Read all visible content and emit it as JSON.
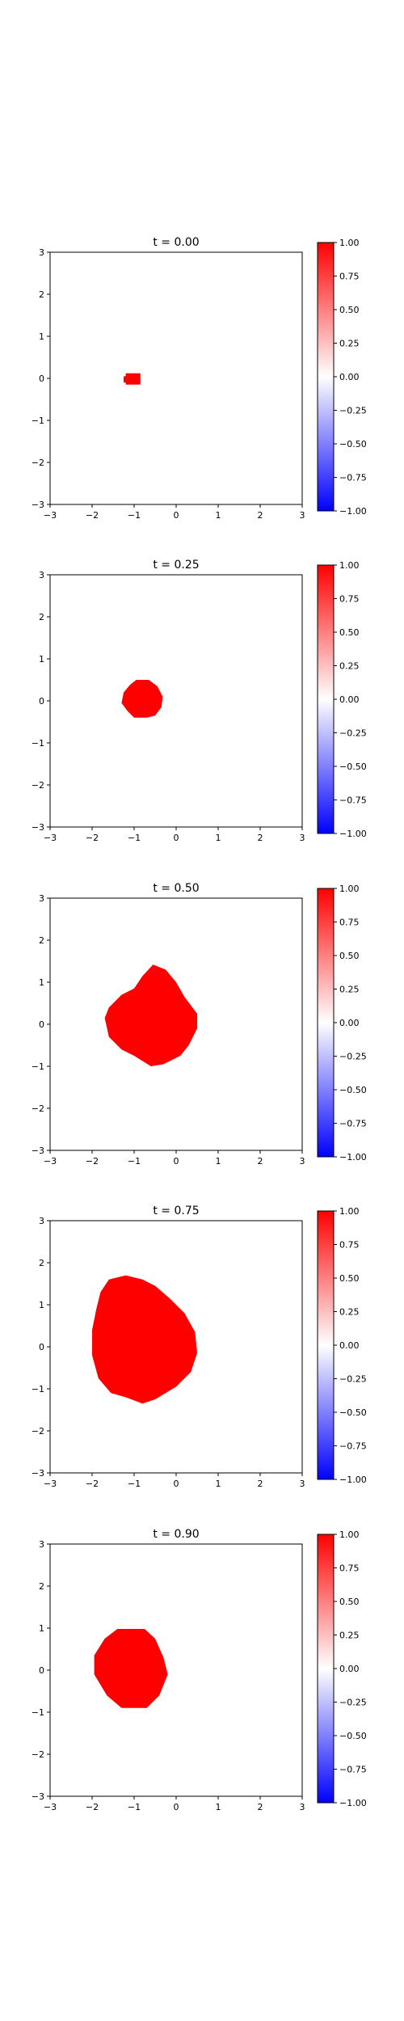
{
  "chart_data": [
    {
      "type": "heatmap",
      "title": "t = 0.00",
      "xlim": [
        -3,
        3
      ],
      "ylim": [
        -3,
        3
      ],
      "xticks": [
        "−3",
        "−2",
        "−1",
        "0",
        "1",
        "2",
        "3"
      ],
      "yticks": [
        "3",
        "2",
        "1",
        "0",
        "−1",
        "−2",
        "−3"
      ],
      "colorbar": {
        "min": -1.0,
        "max": 1.0,
        "ticks": [
          "1.00",
          "0.75",
          "0.50",
          "0.25",
          "0.00",
          "−0.25",
          "−0.50",
          "−0.75",
          "−1.00"
        ],
        "colormap": "bwr"
      },
      "region": {
        "value": 1.0,
        "color": "#ff0000",
        "outline": [
          [
            -1.2,
            0.12
          ],
          [
            -0.85,
            0.12
          ],
          [
            -0.85,
            -0.15
          ],
          [
            -1.2,
            -0.15
          ],
          [
            -1.2,
            -0.1
          ],
          [
            -1.25,
            -0.1
          ],
          [
            -1.25,
            0.05
          ],
          [
            -1.2,
            0.05
          ]
        ]
      }
    },
    {
      "type": "heatmap",
      "title": "t = 0.25",
      "xlim": [
        -3,
        3
      ],
      "ylim": [
        -3,
        3
      ],
      "xticks": [
        "−3",
        "−2",
        "−1",
        "0",
        "1",
        "2",
        "3"
      ],
      "yticks": [
        "3",
        "2",
        "1",
        "0",
        "−1",
        "−2",
        "−3"
      ],
      "colorbar": {
        "min": -1.0,
        "max": 1.0,
        "ticks": [
          "1.00",
          "0.75",
          "0.50",
          "0.25",
          "0.00",
          "−0.25",
          "−0.50",
          "−0.75",
          "−1.00"
        ],
        "colormap": "bwr"
      },
      "region": {
        "value": 1.0,
        "color": "#ff0000",
        "outline": [
          [
            -0.95,
            0.5
          ],
          [
            -0.65,
            0.5
          ],
          [
            -0.45,
            0.35
          ],
          [
            -0.32,
            0.1
          ],
          [
            -0.35,
            -0.15
          ],
          [
            -0.5,
            -0.35
          ],
          [
            -0.7,
            -0.4
          ],
          [
            -1.0,
            -0.4
          ],
          [
            -1.15,
            -0.25
          ],
          [
            -1.3,
            -0.05
          ],
          [
            -1.25,
            0.2
          ],
          [
            -1.1,
            0.38
          ]
        ]
      }
    },
    {
      "type": "heatmap",
      "title": "t = 0.50",
      "xlim": [
        -3,
        3
      ],
      "ylim": [
        -3,
        3
      ],
      "xticks": [
        "−3",
        "−2",
        "−1",
        "0",
        "1",
        "2",
        "3"
      ],
      "yticks": [
        "3",
        "2",
        "1",
        "0",
        "−1",
        "−2",
        "−3"
      ],
      "colorbar": {
        "min": -1.0,
        "max": 1.0,
        "ticks": [
          "1.00",
          "0.75",
          "0.50",
          "0.25",
          "0.00",
          "−0.25",
          "−0.50",
          "−0.75",
          "−1.00"
        ],
        "colormap": "bwr"
      },
      "region": {
        "value": 1.0,
        "color": "#ff0000",
        "outline": [
          [
            -0.55,
            1.42
          ],
          [
            -0.25,
            1.3
          ],
          [
            0.0,
            1.0
          ],
          [
            0.2,
            0.65
          ],
          [
            0.5,
            0.25
          ],
          [
            0.5,
            -0.1
          ],
          [
            0.3,
            -0.5
          ],
          [
            0.1,
            -0.75
          ],
          [
            -0.3,
            -0.95
          ],
          [
            -0.6,
            -1.0
          ],
          [
            -1.0,
            -0.75
          ],
          [
            -1.3,
            -0.6
          ],
          [
            -1.6,
            -0.3
          ],
          [
            -1.7,
            0.15
          ],
          [
            -1.6,
            0.4
          ],
          [
            -1.3,
            0.7
          ],
          [
            -1.0,
            0.85
          ],
          [
            -0.8,
            1.15
          ]
        ]
      }
    },
    {
      "type": "heatmap",
      "title": "t = 0.75",
      "xlim": [
        -3,
        3
      ],
      "ylim": [
        -3,
        3
      ],
      "xticks": [
        "−3",
        "−2",
        "−1",
        "0",
        "1",
        "2",
        "3"
      ],
      "yticks": [
        "3",
        "2",
        "1",
        "0",
        "−1",
        "−2",
        "−3"
      ],
      "colorbar": {
        "min": -1.0,
        "max": 1.0,
        "ticks": [
          "1.00",
          "0.75",
          "0.50",
          "0.25",
          "0.00",
          "−0.25",
          "−0.50",
          "−0.75",
          "−1.00"
        ],
        "colormap": "bwr"
      },
      "region": {
        "value": 1.0,
        "color": "#ff0000",
        "outline": [
          [
            -1.6,
            1.6
          ],
          [
            -1.2,
            1.7
          ],
          [
            -0.8,
            1.6
          ],
          [
            -0.5,
            1.45
          ],
          [
            -0.15,
            1.15
          ],
          [
            0.2,
            0.8
          ],
          [
            0.45,
            0.35
          ],
          [
            0.5,
            -0.15
          ],
          [
            0.35,
            -0.6
          ],
          [
            0.0,
            -0.95
          ],
          [
            -0.5,
            -1.25
          ],
          [
            -0.8,
            -1.35
          ],
          [
            -1.2,
            -1.2
          ],
          [
            -1.55,
            -1.1
          ],
          [
            -1.85,
            -0.75
          ],
          [
            -2.0,
            -0.2
          ],
          [
            -2.0,
            0.4
          ],
          [
            -1.9,
            0.9
          ],
          [
            -1.8,
            1.3
          ]
        ]
      }
    },
    {
      "type": "heatmap",
      "title": "t = 0.90",
      "xlim": [
        -3,
        3
      ],
      "ylim": [
        -3,
        3
      ],
      "xticks": [
        "−3",
        "−2",
        "−1",
        "0",
        "1",
        "2",
        "3"
      ],
      "yticks": [
        "3",
        "2",
        "1",
        "0",
        "−1",
        "−2",
        "−3"
      ],
      "colorbar": {
        "min": -1.0,
        "max": 1.0,
        "ticks": [
          "1.00",
          "0.75",
          "0.50",
          "0.25",
          "0.00",
          "−0.25",
          "−0.50",
          "−0.75",
          "−1.00"
        ],
        "colormap": "bwr"
      },
      "region": {
        "value": 1.0,
        "color": "#ff0000",
        "outline": [
          [
            -1.4,
            0.98
          ],
          [
            -0.75,
            0.98
          ],
          [
            -0.5,
            0.75
          ],
          [
            -0.3,
            0.3
          ],
          [
            -0.2,
            -0.1
          ],
          [
            -0.4,
            -0.6
          ],
          [
            -0.7,
            -0.9
          ],
          [
            -1.3,
            -0.9
          ],
          [
            -1.65,
            -0.6
          ],
          [
            -1.95,
            -0.1
          ],
          [
            -1.95,
            0.35
          ],
          [
            -1.7,
            0.75
          ]
        ]
      }
    }
  ]
}
